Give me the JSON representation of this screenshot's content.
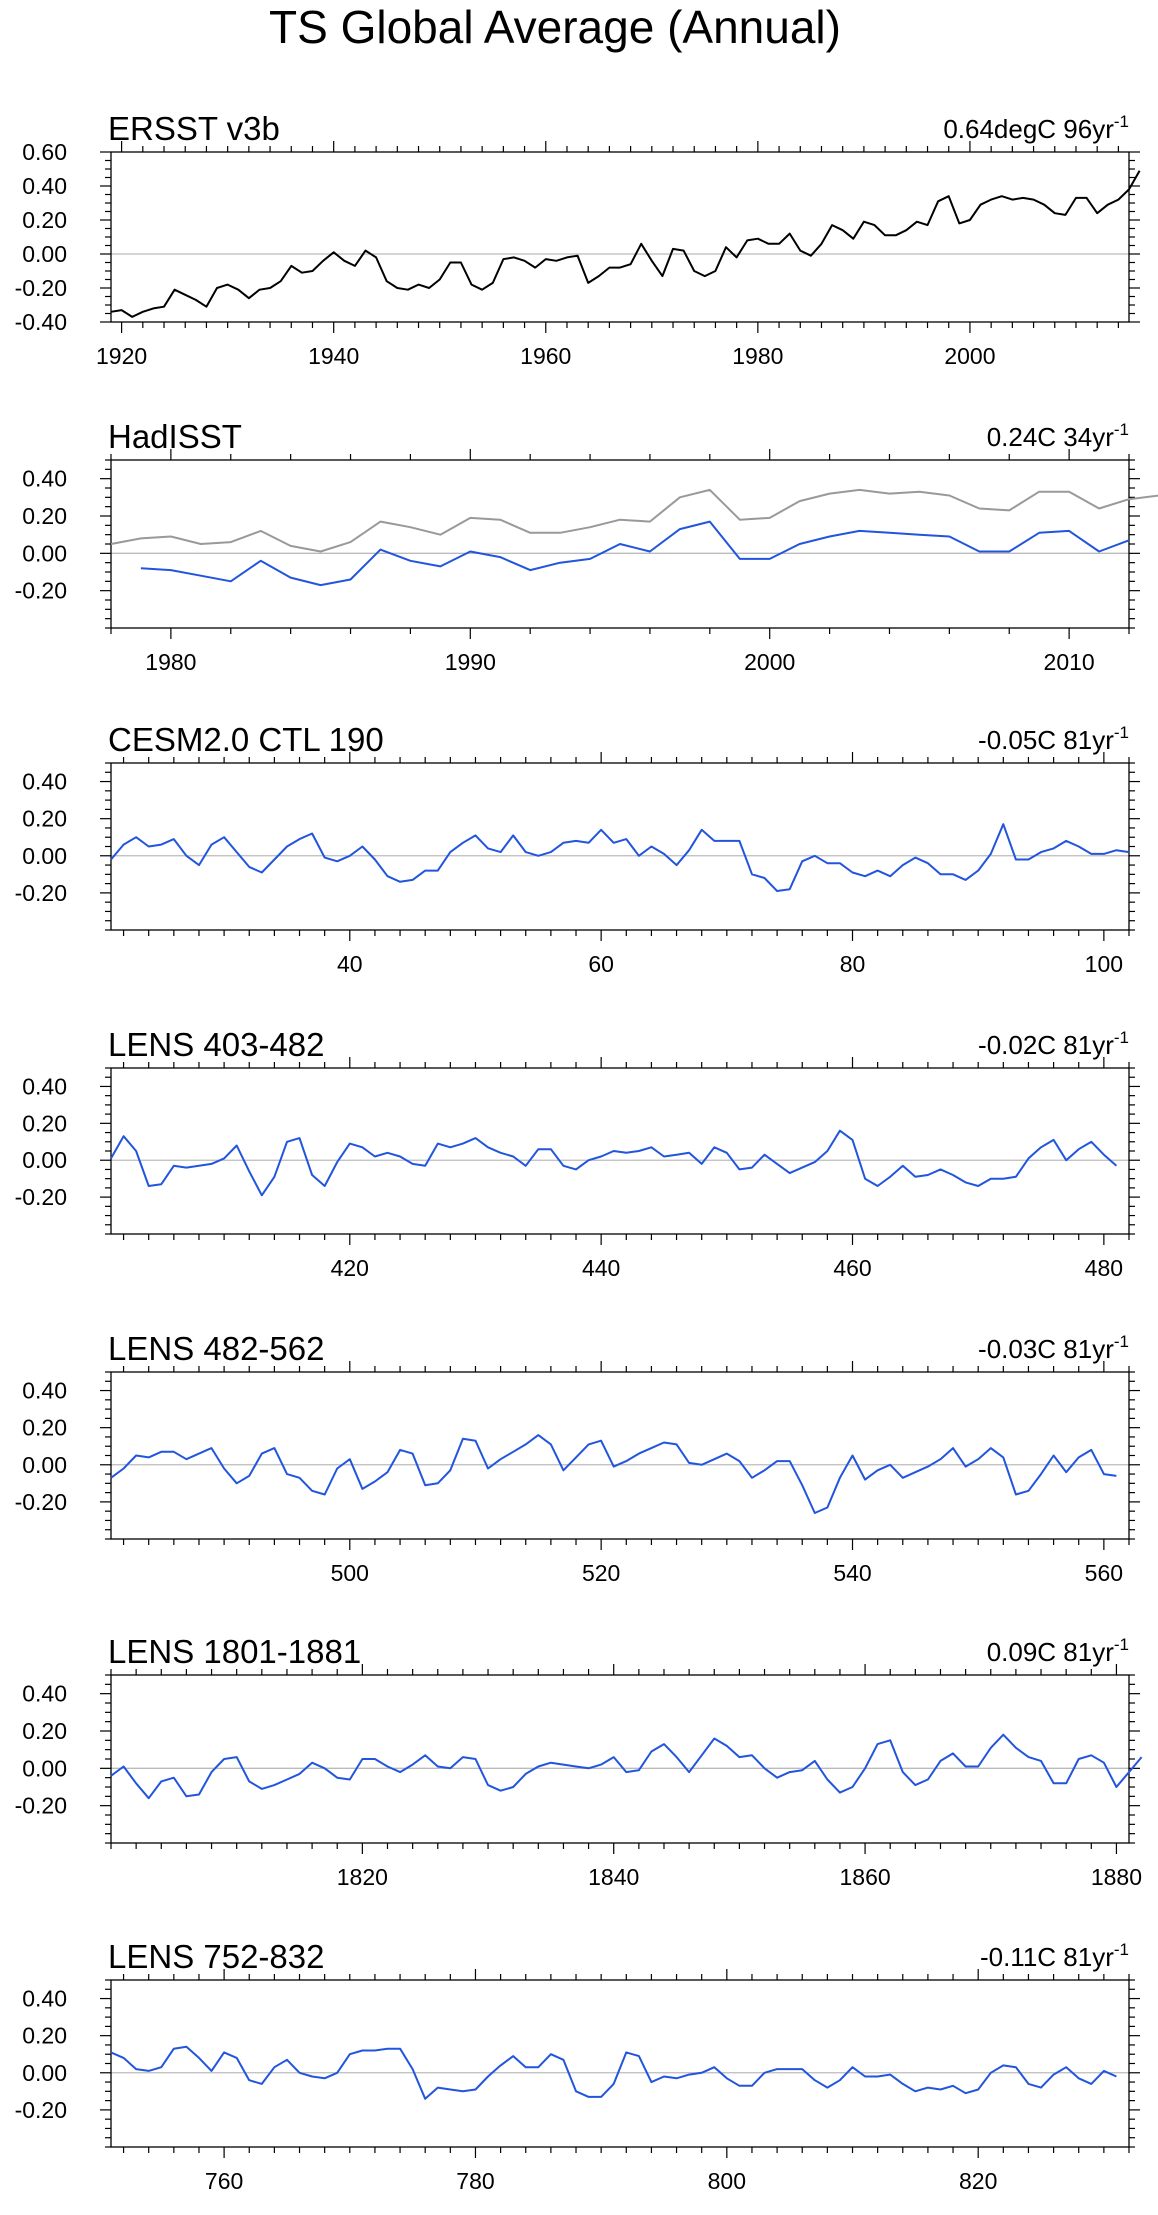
{
  "title": "TS Global Average (Annual)",
  "colors": {
    "primary": "#000000",
    "secondary": "#999999",
    "model": "#2255dd",
    "zero_line": "#bbbbbb"
  },
  "chart_data": [
    {
      "type": "line",
      "title": "ERSST v3b",
      "annotation": "0.64degC 96yr",
      "annotation_sup": "-1",
      "xlim": [
        1919,
        2015
      ],
      "ylim": [
        -0.4,
        0.6
      ],
      "yticks": [
        -0.4,
        -0.2,
        0.0,
        0.2,
        0.4,
        0.6
      ],
      "ytick_labels": [
        "-0.40",
        "-0.20",
        "0.00",
        "0.20",
        "0.40",
        "0.60"
      ],
      "xticks": [
        1920,
        1940,
        1960,
        1980,
        2000
      ],
      "series": [
        {
          "color": "#000000",
          "x_start": 1919,
          "values": [
            -0.34,
            -0.33,
            -0.37,
            -0.34,
            -0.32,
            -0.31,
            -0.21,
            -0.24,
            -0.27,
            -0.31,
            -0.2,
            -0.18,
            -0.21,
            -0.26,
            -0.21,
            -0.2,
            -0.16,
            -0.07,
            -0.11,
            -0.1,
            -0.04,
            0.01,
            -0.04,
            -0.07,
            0.02,
            -0.02,
            -0.16,
            -0.2,
            -0.21,
            -0.18,
            -0.2,
            -0.15,
            -0.05,
            -0.05,
            -0.18,
            -0.21,
            -0.17,
            -0.03,
            -0.02,
            -0.04,
            -0.08,
            -0.03,
            -0.04,
            -0.02,
            -0.01,
            -0.17,
            -0.13,
            -0.08,
            -0.08,
            -0.06,
            0.06,
            -0.04,
            -0.13,
            0.03,
            0.02,
            -0.1,
            -0.13,
            -0.1,
            0.04,
            -0.02,
            0.08,
            0.09,
            0.06,
            0.06,
            0.12,
            0.02,
            -0.01,
            0.06,
            0.17,
            0.14,
            0.09,
            0.19,
            0.17,
            0.11,
            0.11,
            0.14,
            0.19,
            0.17,
            0.31,
            0.34,
            0.18,
            0.2,
            0.29,
            0.32,
            0.34,
            0.32,
            0.33,
            0.32,
            0.29,
            0.24,
            0.23,
            0.33,
            0.33,
            0.24,
            0.29,
            0.32,
            0.38,
            0.49
          ]
        }
      ]
    },
    {
      "type": "line",
      "title": "HadISST",
      "annotation": "0.24C 34yr",
      "annotation_sup": "-1",
      "xlim": [
        1978,
        2012
      ],
      "ylim": [
        -0.4,
        0.5
      ],
      "yticks": [
        -0.2,
        0.0,
        0.2,
        0.4
      ],
      "ytick_labels": [
        "-0.20",
        "0.00",
        "0.20",
        "0.40"
      ],
      "xticks": [
        1980,
        1990,
        2000,
        2010
      ],
      "series": [
        {
          "color": "#999999",
          "x_start": 1978,
          "values": [
            0.05,
            0.08,
            0.09,
            0.05,
            0.06,
            0.12,
            0.04,
            0.01,
            0.06,
            0.17,
            0.14,
            0.1,
            0.19,
            0.18,
            0.11,
            0.11,
            0.14,
            0.18,
            0.17,
            0.3,
            0.34,
            0.18,
            0.19,
            0.28,
            0.32,
            0.34,
            0.32,
            0.33,
            0.31,
            0.24,
            0.23,
            0.33,
            0.33,
            0.24,
            0.29,
            0.31
          ]
        },
        {
          "color": "#2255dd",
          "x_start": 1979,
          "values": [
            -0.08,
            -0.09,
            -0.12,
            -0.15,
            -0.04,
            -0.13,
            -0.17,
            -0.14,
            0.02,
            -0.04,
            -0.07,
            0.01,
            -0.02,
            -0.09,
            -0.05,
            -0.03,
            0.05,
            0.01,
            0.13,
            0.17,
            -0.03,
            -0.03,
            0.05,
            0.09,
            0.12,
            0.11,
            0.1,
            0.09,
            0.01,
            0.01,
            0.11,
            0.12,
            0.01,
            0.07
          ]
        }
      ]
    },
    {
      "type": "line",
      "title": "CESM2.0 CTL 190",
      "annotation": "-0.05C 81yr",
      "annotation_sup": "-1",
      "xlim": [
        21,
        102
      ],
      "ylim": [
        -0.4,
        0.5
      ],
      "yticks": [
        -0.2,
        0.0,
        0.2,
        0.4
      ],
      "ytick_labels": [
        "-0.20",
        "0.00",
        "0.20",
        "0.40"
      ],
      "xticks": [
        40,
        60,
        80,
        100
      ],
      "series": [
        {
          "color": "#2255dd",
          "x_start": 21,
          "values": [
            -0.02,
            0.06,
            0.1,
            0.05,
            0.06,
            0.09,
            0.0,
            -0.05,
            0.06,
            0.1,
            0.02,
            -0.06,
            -0.09,
            -0.02,
            0.05,
            0.09,
            0.12,
            -0.01,
            -0.03,
            0.0,
            0.05,
            -0.02,
            -0.11,
            -0.14,
            -0.13,
            -0.08,
            -0.08,
            0.02,
            0.07,
            0.11,
            0.04,
            0.02,
            0.11,
            0.02,
            0.0,
            0.02,
            0.07,
            0.08,
            0.07,
            0.14,
            0.07,
            0.09,
            0.0,
            0.05,
            0.01,
            -0.05,
            0.03,
            0.14,
            0.08,
            0.08,
            0.08,
            -0.1,
            -0.12,
            -0.19,
            -0.18,
            -0.03,
            0.0,
            -0.04,
            -0.04,
            -0.09,
            -0.11,
            -0.08,
            -0.11,
            -0.05,
            -0.01,
            -0.04,
            -0.1,
            -0.1,
            -0.13,
            -0.08,
            0.01,
            0.17,
            -0.02,
            -0.02,
            0.02,
            0.04,
            0.08,
            0.05,
            0.01,
            0.01,
            0.03,
            0.02
          ]
        }
      ]
    },
    {
      "type": "line",
      "title": "LENS 403-482",
      "annotation": "-0.02C 81yr",
      "annotation_sup": "-1",
      "xlim": [
        401,
        482
      ],
      "ylim": [
        -0.4,
        0.5
      ],
      "yticks": [
        -0.2,
        0.0,
        0.2,
        0.4
      ],
      "ytick_labels": [
        "-0.20",
        "0.00",
        "0.20",
        "0.40"
      ],
      "xticks": [
        420,
        440,
        460,
        480
      ],
      "series": [
        {
          "color": "#2255dd",
          "x_start": 401,
          "values": [
            0.01,
            0.13,
            0.05,
            -0.14,
            -0.13,
            -0.03,
            -0.04,
            -0.03,
            -0.02,
            0.01,
            0.08,
            -0.06,
            -0.19,
            -0.09,
            0.1,
            0.12,
            -0.08,
            -0.14,
            -0.01,
            0.09,
            0.07,
            0.02,
            0.04,
            0.02,
            -0.02,
            -0.03,
            0.09,
            0.07,
            0.09,
            0.12,
            0.07,
            0.04,
            0.02,
            -0.03,
            0.06,
            0.06,
            -0.03,
            -0.05,
            0.0,
            0.02,
            0.05,
            0.04,
            0.05,
            0.07,
            0.02,
            0.03,
            0.04,
            -0.02,
            0.07,
            0.04,
            -0.05,
            -0.04,
            0.03,
            -0.02,
            -0.07,
            -0.04,
            -0.01,
            0.05,
            0.16,
            0.11,
            -0.1,
            -0.14,
            -0.09,
            -0.03,
            -0.09,
            -0.08,
            -0.05,
            -0.08,
            -0.12,
            -0.14,
            -0.1,
            -0.1,
            -0.09,
            0.01,
            0.07,
            0.11,
            0.0,
            0.06,
            0.1,
            0.03,
            -0.03
          ]
        }
      ]
    },
    {
      "type": "line",
      "title": "LENS 482-562",
      "annotation": "-0.03C 81yr",
      "annotation_sup": "-1",
      "xlim": [
        481,
        562
      ],
      "ylim": [
        -0.4,
        0.5
      ],
      "yticks": [
        -0.2,
        0.0,
        0.2,
        0.4
      ],
      "ytick_labels": [
        "-0.20",
        "0.00",
        "0.20",
        "0.40"
      ],
      "xticks": [
        500,
        520,
        540,
        560
      ],
      "series": [
        {
          "color": "#2255dd",
          "x_start": 481,
          "values": [
            -0.07,
            -0.02,
            0.05,
            0.04,
            0.07,
            0.07,
            0.03,
            0.06,
            0.09,
            -0.02,
            -0.1,
            -0.06,
            0.06,
            0.09,
            -0.05,
            -0.07,
            -0.14,
            -0.16,
            -0.02,
            0.03,
            -0.13,
            -0.09,
            -0.04,
            0.08,
            0.06,
            -0.11,
            -0.1,
            -0.03,
            0.14,
            0.13,
            -0.02,
            0.03,
            0.07,
            0.11,
            0.16,
            0.11,
            -0.03,
            0.04,
            0.11,
            0.13,
            -0.01,
            0.02,
            0.06,
            0.09,
            0.12,
            0.11,
            0.01,
            0.0,
            0.03,
            0.06,
            0.02,
            -0.07,
            -0.03,
            0.02,
            0.02,
            -0.11,
            -0.26,
            -0.23,
            -0.07,
            0.05,
            -0.08,
            -0.03,
            0.0,
            -0.07,
            -0.04,
            -0.01,
            0.03,
            0.09,
            -0.01,
            0.03,
            0.09,
            0.04,
            -0.16,
            -0.14,
            -0.05,
            0.05,
            -0.04,
            0.04,
            0.08,
            -0.05,
            -0.06
          ]
        }
      ]
    },
    {
      "type": "line",
      "title": "LENS 1801-1881",
      "annotation": "0.09C 81yr",
      "annotation_sup": "-1",
      "xlim": [
        1800,
        1881
      ],
      "ylim": [
        -0.4,
        0.5
      ],
      "yticks": [
        -0.2,
        0.0,
        0.2,
        0.4
      ],
      "ytick_labels": [
        "-0.20",
        "0.00",
        "0.20",
        "0.40"
      ],
      "xticks": [
        1820,
        1840,
        1860,
        1880
      ],
      "series": [
        {
          "color": "#2255dd",
          "x_start": 1800,
          "values": [
            -0.04,
            0.01,
            -0.08,
            -0.16,
            -0.07,
            -0.05,
            -0.15,
            -0.14,
            -0.02,
            0.05,
            0.06,
            -0.07,
            -0.11,
            -0.09,
            -0.06,
            -0.03,
            0.03,
            0.0,
            -0.05,
            -0.06,
            0.05,
            0.05,
            0.01,
            -0.02,
            0.02,
            0.07,
            0.01,
            0.0,
            0.06,
            0.05,
            -0.09,
            -0.12,
            -0.1,
            -0.03,
            0.01,
            0.03,
            0.02,
            0.01,
            0.0,
            0.02,
            0.06,
            -0.02,
            -0.01,
            0.09,
            0.13,
            0.06,
            -0.02,
            0.07,
            0.16,
            0.12,
            0.06,
            0.07,
            0.0,
            -0.05,
            -0.02,
            -0.01,
            0.04,
            -0.06,
            -0.13,
            -0.1,
            0.0,
            0.13,
            0.15,
            -0.02,
            -0.09,
            -0.06,
            0.04,
            0.08,
            0.01,
            0.01,
            0.11,
            0.18,
            0.11,
            0.06,
            0.04,
            -0.08,
            -0.08,
            0.05,
            0.07,
            0.03,
            -0.1,
            -0.02,
            0.06
          ]
        }
      ]
    },
    {
      "type": "line",
      "title": "LENS 752-832",
      "annotation": "-0.11C 81yr",
      "annotation_sup": "-1",
      "xlim": [
        751,
        832
      ],
      "ylim": [
        -0.4,
        0.5
      ],
      "yticks": [
        -0.2,
        0.0,
        0.2,
        0.4
      ],
      "ytick_labels": [
        "-0.20",
        "0.00",
        "0.20",
        "0.40"
      ],
      "xticks": [
        760,
        780,
        800,
        820
      ],
      "series": [
        {
          "color": "#2255dd",
          "x_start": 751,
          "values": [
            0.11,
            0.08,
            0.02,
            0.01,
            0.03,
            0.13,
            0.14,
            0.08,
            0.01,
            0.11,
            0.08,
            -0.04,
            -0.06,
            0.03,
            0.07,
            0.0,
            -0.02,
            -0.03,
            0.0,
            0.1,
            0.12,
            0.12,
            0.13,
            0.13,
            0.02,
            -0.14,
            -0.08,
            -0.09,
            -0.1,
            -0.09,
            -0.02,
            0.04,
            0.09,
            0.03,
            0.03,
            0.1,
            0.07,
            -0.1,
            -0.13,
            -0.13,
            -0.06,
            0.11,
            0.09,
            -0.05,
            -0.02,
            -0.03,
            -0.01,
            0.0,
            0.03,
            -0.03,
            -0.07,
            -0.07,
            0.0,
            0.02,
            0.02,
            0.02,
            -0.04,
            -0.08,
            -0.04,
            0.03,
            -0.02,
            -0.02,
            -0.01,
            -0.06,
            -0.1,
            -0.08,
            -0.09,
            -0.07,
            -0.11,
            -0.09,
            0.0,
            0.04,
            0.03,
            -0.06,
            -0.08,
            -0.01,
            0.03,
            -0.03,
            -0.06,
            0.01,
            -0.02
          ]
        }
      ]
    }
  ]
}
